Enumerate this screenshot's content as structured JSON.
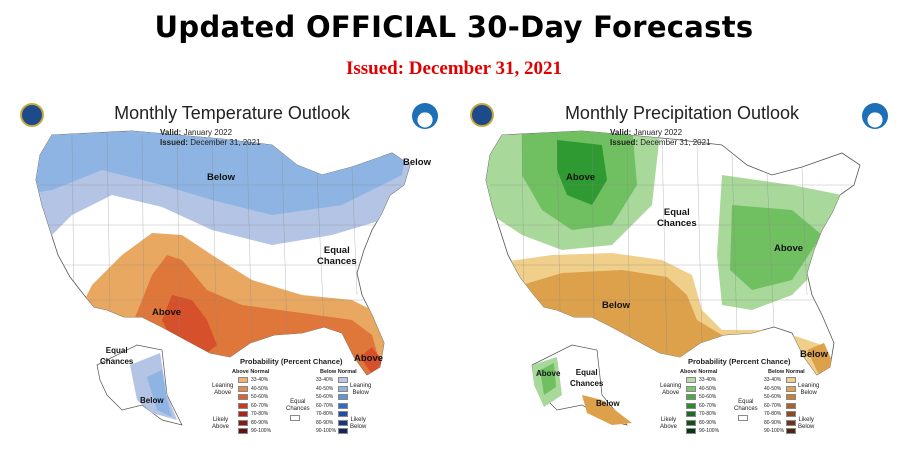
{
  "header": {
    "title": "Updated OFFICIAL 30-Day Forecasts",
    "issued": "Issued: December 31, 2021"
  },
  "temperature_map": {
    "title": "Monthly Temperature Outlook",
    "valid_label": "Valid:",
    "valid_value": "January 2022",
    "issued_label": "Issued:",
    "issued_value": "December 31, 2021",
    "labels": {
      "below_north": "Below",
      "below_maine": "Below",
      "equal_chances": "Equal\nChances",
      "above_south": "Above",
      "above_florida": "Above",
      "alaska_equal": "Equal\nChances",
      "alaska_below": "Below"
    },
    "colors": {
      "below_33": "#b4c4e4",
      "below_40": "#8db4e2",
      "above_33": "#e9a862",
      "above_40": "#e0773a",
      "above_50": "#d6502b"
    }
  },
  "precipitation_map": {
    "title": "Monthly Precipitation Outlook",
    "valid_label": "Valid:",
    "valid_value": "January 2022",
    "issued_label": "Issued:",
    "issued_value": "December 31, 2021",
    "labels": {
      "above_nw": "Above",
      "equal_chances": "Equal\nChances",
      "above_ohio": "Above",
      "below_sw": "Below",
      "below_florida": "Below",
      "alaska_above": "Above",
      "alaska_equal": "Equal\nChances",
      "alaska_below": "Below"
    },
    "colors": {
      "above_33": "#a8d89a",
      "above_40": "#70c062",
      "above_50": "#2f9a32",
      "below_33": "#f0cf8a",
      "below_40": "#dca14a"
    }
  },
  "temperature_legend": {
    "title": "Probability (Percent Chance)",
    "above_header": "Above Normal",
    "below_header": "Below Normal",
    "ranges": [
      "33-40%",
      "40-50%",
      "50-60%",
      "60-70%",
      "70-80%",
      "80-90%",
      "90-100%"
    ],
    "above_colors": [
      "#f1b36e",
      "#e78a49",
      "#dd5f32",
      "#c83a26",
      "#a8241d",
      "#8a1a16",
      "#6a0f10"
    ],
    "below_colors": [
      "#b8c8e6",
      "#8fb4e0",
      "#5e96d6",
      "#2e6cc4",
      "#1f4ea6",
      "#193682",
      "#142560"
    ],
    "leaning_above": "Leaning\nAbove",
    "likely_above": "Likely\nAbove",
    "leaning_below": "Leaning\nBelow",
    "likely_below": "Likely\nBelow",
    "equal_chances": "Equal\nChances"
  },
  "precipitation_legend": {
    "title": "Probability (Percent Chance)",
    "above_header": "Above Normal",
    "below_header": "Below Normal",
    "ranges": [
      "33-40%",
      "40-50%",
      "50-60%",
      "60-70%",
      "70-80%",
      "80-90%",
      "90-100%"
    ],
    "above_colors": [
      "#b3dca6",
      "#7fc46f",
      "#4aa846",
      "#2a8a30",
      "#1c6b24",
      "#134f1a",
      "#0c3611"
    ],
    "below_colors": [
      "#f0cf8e",
      "#dfa450",
      "#c97f2f",
      "#a9622a",
      "#8a4a22",
      "#6c361a",
      "#4e2412"
    ],
    "leaning_above": "Leaning\nAbove",
    "likely_above": "Likely\nAbove",
    "leaning_below": "Leaning\nBelow",
    "likely_below": "Likely\nBelow",
    "equal_chances": "Equal\nChances"
  }
}
